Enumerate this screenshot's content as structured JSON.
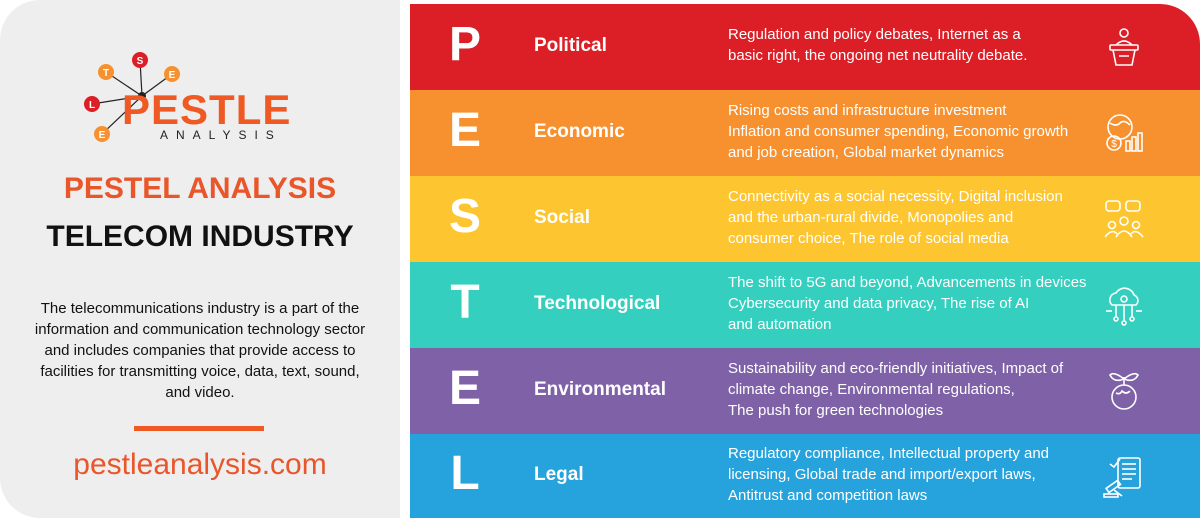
{
  "brand": {
    "logo_letters": [
      "T",
      "S",
      "E",
      "L",
      "E"
    ],
    "logo_word": "PESTLE",
    "logo_sub": "ANALYSIS",
    "accent": "#ef5a24"
  },
  "left": {
    "title_line1": "PESTEL ANALYSIS",
    "title_line2": "TELECOM INDUSTRY",
    "description": "The telecommunications industry is a part of the information and communication technology sector and includes companies that provide access to facilities for transmitting voice, data, text, sound, and video.",
    "website": "pestleanalysis.com"
  },
  "rows": [
    {
      "letter": "P",
      "name": "Political",
      "color": "#dc1f26",
      "icon": "podium-speaker-icon",
      "lines": [
        "Regulation and policy debates, Internet as a",
        "basic right, the ongoing net neutrality debate."
      ]
    },
    {
      "letter": "E",
      "name": "Economic",
      "color": "#f7912f",
      "icon": "globe-dollar-chart-icon",
      "lines": [
        "Rising costs and infrastructure investment",
        "Inflation and consumer spending, Economic growth",
        "and job creation, Global market dynamics"
      ]
    },
    {
      "letter": "S",
      "name": "Social",
      "color": "#fdc52f",
      "icon": "people-chat-icon",
      "lines": [
        "Connectivity as a social necessity, Digital inclusion",
        "and the urban-rural divide, Monopolies and",
        "consumer choice, The role of social media"
      ]
    },
    {
      "letter": "T",
      "name": "Technological",
      "color": "#34cfbe",
      "icon": "cloud-circuit-icon",
      "lines": [
        "The shift to 5G and beyond, Advancements in devices",
        "Cybersecurity and data privacy, The rise of AI",
        "and automation"
      ]
    },
    {
      "letter": "E",
      "name": "Environmental",
      "color": "#7f61a8",
      "icon": "globe-leaf-icon",
      "lines": [
        "Sustainability and eco-friendly initiatives, Impact of",
        "climate change, Environmental regulations,",
        "The push for green technologies"
      ]
    },
    {
      "letter": "L",
      "name": "Legal",
      "color": "#26a3dd",
      "icon": "gavel-document-icon",
      "lines": [
        "Regulatory compliance, Intellectual property and",
        "licensing, Global trade and import/export laws,",
        "Antitrust and competition laws"
      ]
    }
  ]
}
